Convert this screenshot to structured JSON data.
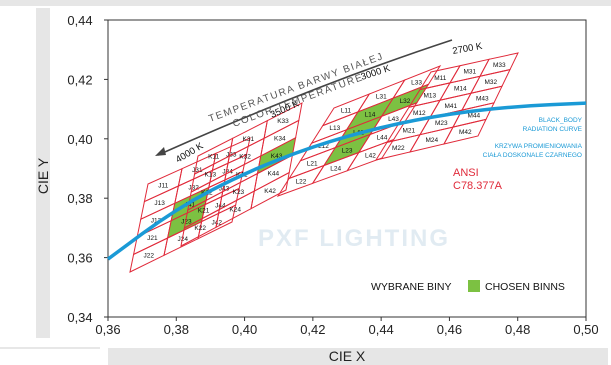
{
  "chart_data": {
    "type": "scatter",
    "xlabel": "CIE X",
    "ylabel": "CIE Y",
    "xlim": [
      0.36,
      0.5
    ],
    "ylim": [
      0.34,
      0.44
    ],
    "x_ticks": [
      "0,36",
      "0,38",
      "0,40",
      "0,42",
      "0,44",
      "0,46",
      "0,48",
      "0,50"
    ],
    "y_ticks": [
      "0,34",
      "0,36",
      "0,38",
      "0,40",
      "0,42",
      "0,44"
    ],
    "grid": false,
    "temperature_arrow_text": [
      "TEMPERATURA BARWY BIAŁEJ",
      "COLOR TEMPERATURE"
    ],
    "cct_labels": [
      "4000 K",
      "3500 K",
      "3000 K",
      "2700 K"
    ],
    "curve_label_en": [
      "BLACK_BODY",
      "RADIATION CURVE"
    ],
    "curve_label_pl": [
      "KRZYWA PROMIENIOWANIA",
      "CIAŁA DOSKONALE CZARNEGO"
    ],
    "curve_color": "#1a9ad6",
    "grid_color": "#e02a3a",
    "chosen_color": "#7cc142",
    "ansi_label": [
      "ANSI",
      "C78.377A"
    ],
    "watermark": "PXF LIGHTING",
    "legend_prefix": "WYBRANE BINY",
    "legend_item": "CHOSEN BINNS",
    "blackbody_curve": [
      [
        0.36,
        0.3595
      ],
      [
        0.38,
        0.3765
      ],
      [
        0.4,
        0.3885
      ],
      [
        0.42,
        0.3975
      ],
      [
        0.44,
        0.404
      ],
      [
        0.46,
        0.4085
      ],
      [
        0.48,
        0.411
      ],
      [
        0.5,
        0.412
      ]
    ],
    "bin_groups": [
      {
        "cct": "4000 K",
        "rows": [
          [
            "J11",
            "J31",
            "J33"
          ],
          [
            "J13",
            "J32",
            "J34"
          ],
          [
            "J12",
            "J41",
            "J43"
          ],
          [
            "J21",
            "J23",
            "J44"
          ],
          [
            "J22",
            "J24",
            "J42"
          ]
        ],
        "chosen": [
          "J23",
          "J41"
        ]
      },
      {
        "cct": "3500 K",
        "rows": [
          [
            "K11",
            "K31",
            "K33"
          ],
          [
            "K13",
            "K32",
            "K34"
          ],
          [
            "K12",
            "K41",
            "K43"
          ],
          [
            "K21",
            "K23",
            "K44"
          ],
          [
            "K22",
            "K24",
            "K42"
          ]
        ],
        "chosen": [
          "K43"
        ]
      },
      {
        "cct": "3000 K",
        "rows": [
          [
            "L11",
            "L31",
            "L33"
          ],
          [
            "L13",
            "L14",
            "L32"
          ],
          [
            "L12",
            "L41",
            "L43"
          ],
          [
            "L21",
            "L23",
            "L44"
          ],
          [
            "L22",
            "L24",
            "L42"
          ]
        ],
        "chosen": [
          "L14",
          "L32",
          "L23",
          "L41"
        ]
      },
      {
        "cct": "2700 K",
        "rows": [
          [
            "M11",
            "M31",
            "M33"
          ],
          [
            "M13",
            "M14",
            "M32"
          ],
          [
            "M12",
            "M41",
            "M43"
          ],
          [
            "M21",
            "M23",
            "M44"
          ],
          [
            "M22",
            "M24",
            "M42"
          ]
        ],
        "chosen": []
      }
    ]
  }
}
